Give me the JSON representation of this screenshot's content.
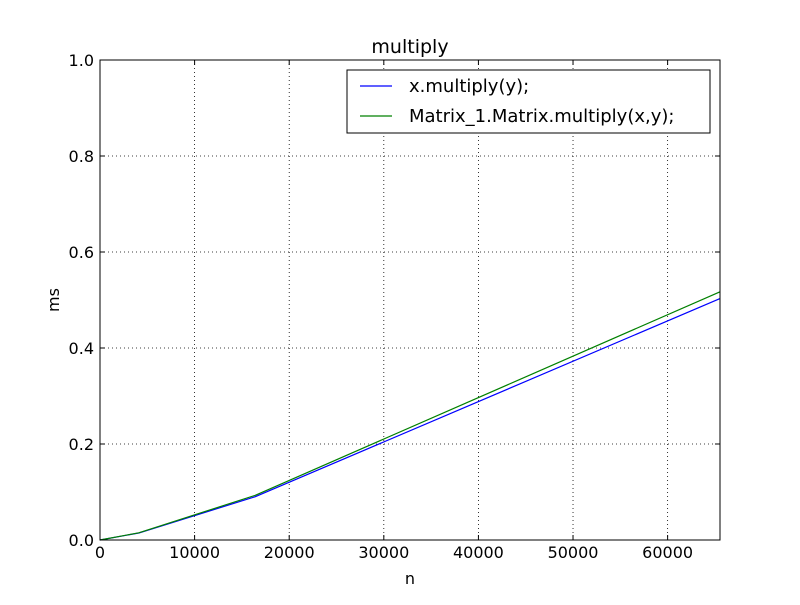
{
  "chart_data": {
    "type": "line",
    "title": "multiply",
    "xlabel": "n",
    "ylabel": "ms",
    "xlim": [
      0,
      65536
    ],
    "ylim": [
      0,
      1.0
    ],
    "xticks": [
      "0",
      "10000",
      "20000",
      "30000",
      "40000",
      "50000",
      "60000"
    ],
    "yticks": [
      "0.0",
      "0.2",
      "0.4",
      "0.6",
      "0.8",
      "1.0"
    ],
    "grid": true,
    "legend_position": "top-right",
    "series": [
      {
        "name": "x.multiply(y);",
        "color": "#0000ff",
        "x": [
          0,
          4096,
          16384,
          65536
        ],
        "y": [
          0.0,
          0.0145,
          0.09,
          0.503
        ]
      },
      {
        "name": "Matrix_1.Matrix.multiply(x,y);",
        "color": "#008000",
        "x": [
          0,
          4096,
          16384,
          65536
        ],
        "y": [
          0.0,
          0.015,
          0.093,
          0.517
        ]
      }
    ]
  }
}
